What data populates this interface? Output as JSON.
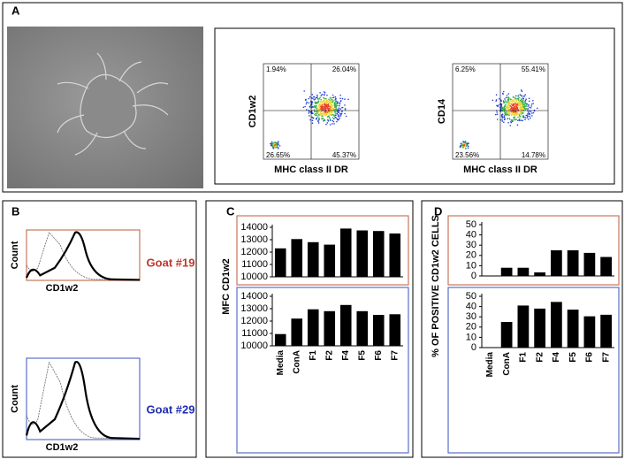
{
  "panel_labels": [
    "A",
    "B",
    "C",
    "D"
  ],
  "chart_data": [
    {
      "type": "flow",
      "xlabel": "MHC class II DR",
      "ylabel": "CD1w2",
      "quadrants": [
        "1.94%",
        "26.04%",
        "26.65%",
        "45.37%"
      ]
    },
    {
      "type": "flow",
      "xlabel": "MHC class II DR",
      "ylabel": "CD14",
      "quadrants": [
        "6.25%",
        "55.41%",
        "23.56%",
        "14.78%"
      ]
    },
    {
      "type": "histogram-overlay",
      "xlabel": "CD1w2",
      "ylabel": "Count",
      "label": "Goat #19",
      "color": "#c0392b",
      "frame": "#c8765a"
    },
    {
      "type": "histogram-overlay",
      "xlabel": "CD1w2",
      "ylabel": "Count",
      "label": "Goat #29",
      "color": "#1f2fb5",
      "frame": "#5a6fc8"
    },
    {
      "type": "bar",
      "ylabel": "MFC CD1w2",
      "categories": [
        "Media",
        "ConA",
        "F1",
        "F2",
        "F4",
        "F5",
        "F6",
        "F7"
      ],
      "ylim": [
        10000,
        14000
      ],
      "yticks": [
        10000,
        11000,
        12000,
        13000,
        14000
      ],
      "series": [
        {
          "color": "#000000",
          "frame": "#c8765a",
          "values": [
            12300,
            13050,
            12800,
            12600,
            13900,
            13750,
            13700,
            13500
          ]
        },
        {
          "color": "#000000",
          "frame": "#5a6fc8",
          "values": [
            10950,
            12200,
            12950,
            12800,
            13300,
            12800,
            12500,
            12550
          ]
        }
      ]
    },
    {
      "type": "bar",
      "ylabel": "% OF POSITIVE CD1w2 CELLS",
      "categories": [
        "Media",
        "ConA",
        "F1",
        "F2",
        "F4",
        "F5",
        "F6",
        "F7"
      ],
      "ylim": [
        0,
        50
      ],
      "yticks": [
        0,
        10,
        20,
        30,
        40,
        50
      ],
      "series": [
        {
          "color": "#000000",
          "frame": "#c8765a",
          "values": [
            0,
            8,
            8,
            3.5,
            25,
            25,
            22.5,
            18.5
          ]
        },
        {
          "color": "#000000",
          "frame": "#5a6fc8",
          "values": [
            0,
            25,
            41,
            38,
            44.5,
            37,
            30.5,
            32
          ]
        }
      ]
    }
  ]
}
